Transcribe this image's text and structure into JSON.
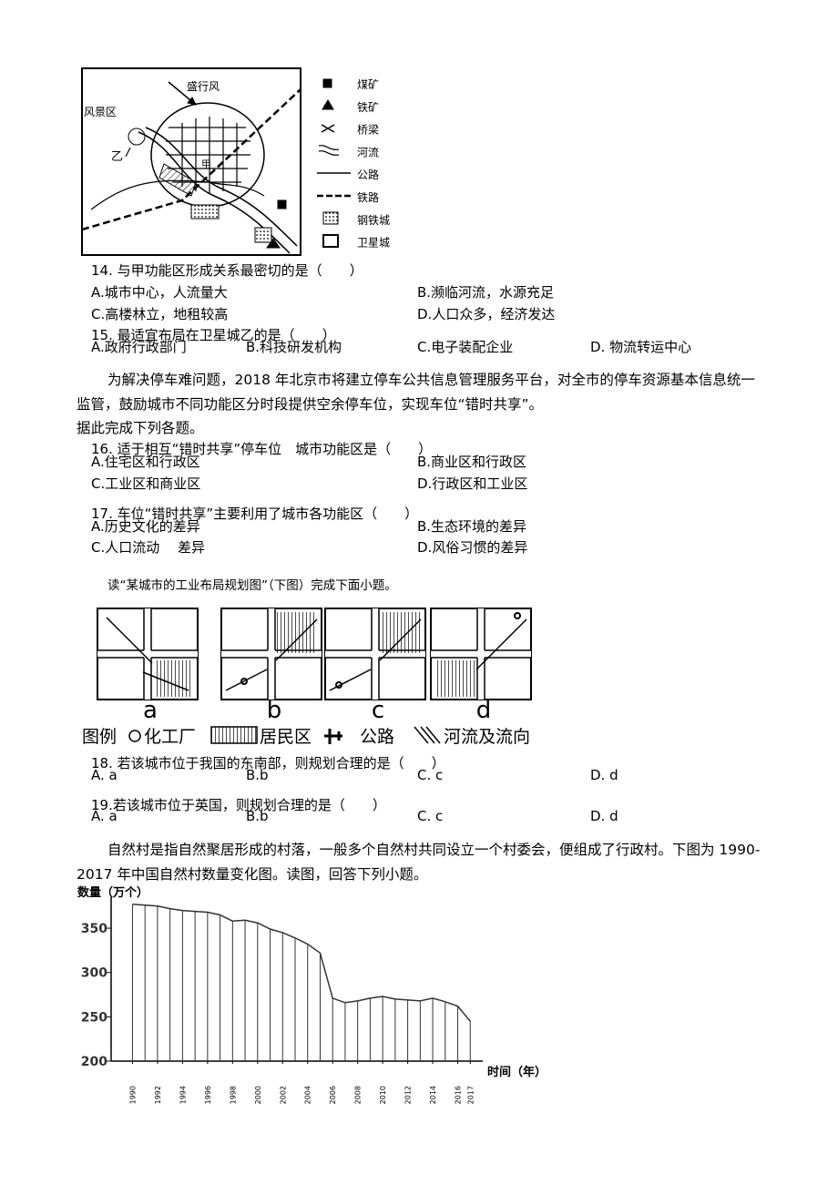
{
  "map": {
    "labels": {
      "wind": "盛行风",
      "scenic": "风景区",
      "yi": "乙",
      "jia": "甲"
    },
    "legend": [
      "煤矿",
      "铁矿",
      "桥梁",
      "河流",
      "公路",
      "铁路",
      "钢铁城",
      "卫星城"
    ]
  },
  "questions": [
    {
      "stem": "14. 与甲功能区形成关系最密切的是（　　）",
      "options": [
        "A.城市中心，人流量大",
        "B.濒临河流，水源充足",
        "C.高楼林立，地租较高",
        "D.人口众多，经济发达"
      ]
    },
    {
      "stem": "15.  最适宜布局在卫星城乙的是（　　）",
      "options": [
        "A.政府行政部门",
        "B.科技研发机构",
        "C.电子装配企业",
        "D.  物流转运中心"
      ]
    },
    {
      "stem": "16.  适于相互“错时共享”停车位　城市功能区是（　　）",
      "options": [
        "A.住宅区和行政区",
        "B.商业区和行政区",
        "C.工业区和商业区",
        "D.行政区和工业区"
      ]
    },
    {
      "stem": "17.  车位“错时共享”主要利用了城市各功能区（　　）",
      "options": [
        "A.历史文化的差异",
        "B.生态环境的差异",
        "C.人口流动　 差异",
        "D.风俗习惯的差异"
      ]
    },
    {
      "stem": "18.  若该城市位于我国的东南部，则规划合理的是（　　）",
      "options": [
        "A.  a",
        "B.b",
        "C.  c",
        "D.  d"
      ]
    },
    {
      "stem": "19.若该城市位于英国，则规划合理的是（　　）",
      "options": [
        "A.  a",
        "B.b",
        "C.  c",
        "D.  d"
      ]
    }
  ],
  "paragraphs": [
    "为解决停车难问题，2018 年北京市将建立停车公共信息管理服务平台，对全市的停车资源基本信息统一监管，鼓励城市不同功能区分时段提供空余停车位，实现车位“错时共享”。",
    "据此完成下列各题。",
    "读“某城市的工业布局规划图”（下图）完成下面小题。",
    "自然村是指自然聚居形成的村落，一般多个自然村共同设立一个村委会，便组成了行政村。下图为 1990-2017 年中国自然村数量变化图。读图，回答下列小题。"
  ],
  "layout_figure": {
    "panels": [
      "a",
      "b",
      "c",
      "d"
    ],
    "legend_title": "图例",
    "legend": [
      "化工厂",
      "居民区",
      "公路",
      "河流及流向"
    ]
  },
  "chart_data": {
    "type": "bar",
    "y_label": "数量（万个）",
    "x_label": "时间（年）",
    "x": [
      1990,
      1991,
      1992,
      1993,
      1994,
      1995,
      1996,
      1997,
      1998,
      1999,
      2000,
      2001,
      2002,
      2003,
      2004,
      2005,
      2006,
      2007,
      2008,
      2009,
      2010,
      2011,
      2012,
      2013,
      2014,
      2015,
      2016,
      2017
    ],
    "values": [
      377,
      376,
      375,
      372,
      370,
      369,
      368,
      365,
      358,
      359,
      356,
      349,
      345,
      339,
      332,
      322,
      271,
      266,
      268,
      271,
      273,
      270,
      269,
      268,
      271,
      267,
      262,
      245
    ],
    "color": "#333333",
    "xlim": [
      1988,
      2018
    ],
    "xticks": [
      1990,
      1992,
      1994,
      1996,
      1998,
      2000,
      2002,
      2004,
      2006,
      2008,
      2010,
      2012,
      2014,
      2016,
      2017
    ],
    "ylim": [
      200,
      385
    ],
    "yticks": [
      200,
      250,
      300,
      350
    ]
  }
}
